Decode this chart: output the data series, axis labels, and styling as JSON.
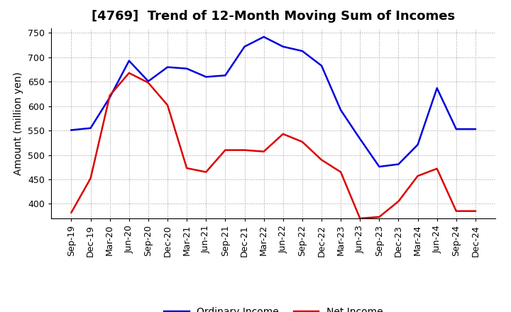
{
  "title": "[4769]  Trend of 12-Month Moving Sum of Incomes",
  "ylabel": "Amount (million yen)",
  "background_color": "#ffffff",
  "plot_bg_color": "#ffffff",
  "grid_color": "#999999",
  "x_labels": [
    "Sep-19",
    "Dec-19",
    "Mar-20",
    "Jun-20",
    "Sep-20",
    "Dec-20",
    "Mar-21",
    "Jun-21",
    "Sep-21",
    "Dec-21",
    "Mar-22",
    "Jun-22",
    "Sep-22",
    "Dec-22",
    "Mar-23",
    "Jun-23",
    "Sep-23",
    "Dec-23",
    "Mar-24",
    "Jun-24",
    "Sep-24",
    "Dec-24"
  ],
  "ordinary_income": [
    551,
    555,
    618,
    693,
    651,
    680,
    677,
    660,
    663,
    722,
    742,
    722,
    713,
    683,
    592,
    533,
    476,
    481,
    521,
    637,
    553,
    553
  ],
  "net_income": [
    382,
    452,
    622,
    668,
    648,
    602,
    473,
    465,
    510,
    510,
    507,
    543,
    527,
    490,
    465,
    370,
    373,
    405,
    457,
    472,
    385,
    385
  ],
  "ordinary_income_color": "#0000dd",
  "net_income_color": "#dd0000",
  "ylim_min": 370,
  "ylim_max": 760,
  "yticks": [
    400,
    450,
    500,
    550,
    600,
    650,
    700,
    750
  ],
  "legend_ordinary": "Ordinary Income",
  "legend_net": "Net Income",
  "line_width": 1.8,
  "title_fontsize": 13,
  "ylabel_fontsize": 10,
  "tick_fontsize": 9,
  "legend_fontsize": 10
}
